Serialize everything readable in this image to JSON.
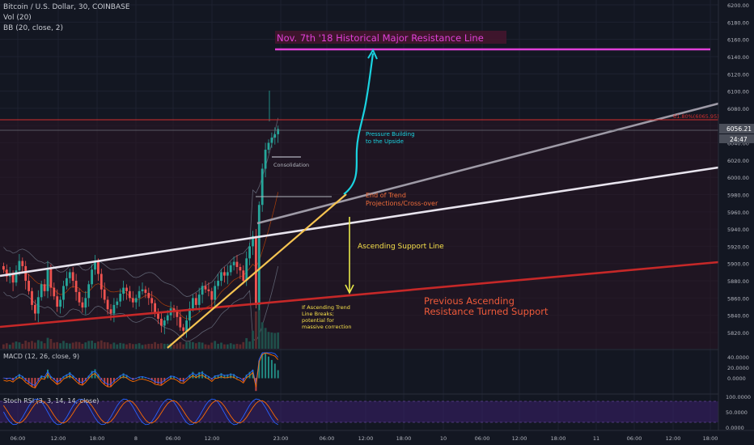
{
  "header": {
    "symbol": "Bitcoin / U.S. Dollar, 30, COINBASE",
    "vol": "Vol (20)",
    "bb": "BB (20, close, 2)",
    "macd": "MACD (12, 26, close, 9)",
    "stoch": "Stoch RSI (3, 3, 14, 14, close)"
  },
  "price_tags": {
    "last": "6056.21",
    "countdown": "24:47",
    "fib": "61.80%(6065.95)"
  },
  "annotations": {
    "resistance_title": "Nov. 7th '18 Historical Major Resistance Line",
    "pressure_1": "Pressure Building",
    "pressure_2": "to the Upside",
    "consolidation": "Consolidation",
    "end_trend_1": "End of Trend",
    "end_trend_2": "Projections/Cross-over",
    "asc_support": "Ascending Support Line",
    "prev_asc_1": "Previous Ascending",
    "prev_asc_2": "Resistance Turned Support",
    "breaks_1": "If Ascending Trend",
    "breaks_2": "Line Breaks;",
    "breaks_3": "potential for",
    "breaks_4": "massive correction"
  },
  "colors": {
    "background": "#131722",
    "grid": "#1e2230",
    "candle_up": "#26a69a",
    "candle_down": "#ef5350",
    "resistance_magenta": "#e040d8",
    "fib_line": "#d32f2f",
    "macd_line": "#2962ff",
    "signal_line": "#ff6d00",
    "stoch_k": "#2962ff",
    "stoch_d": "#ff6d00",
    "stoch_band": "#4a2a7a"
  },
  "chart_data": {
    "type": "candlestick",
    "y_axis_ticks": [
      6200,
      6180,
      6160,
      6140,
      6120,
      6100,
      6080,
      6060,
      6040,
      6020,
      6000,
      5980,
      5960,
      5940,
      5920,
      5900,
      5880,
      5860,
      5840,
      5820
    ],
    "ylim": [
      5810,
      6205
    ],
    "x_axis_ticks": [
      "06:00",
      "12:00",
      "18:00",
      "8",
      "06:00",
      "12:00",
      "23:00",
      "06:00",
      "12:00",
      "18:00",
      "10",
      "06:00",
      "12:00",
      "18:00",
      "11",
      "06:00",
      "12:00",
      "18:00"
    ],
    "macd_ticks": [
      "40.0000",
      "20.0000",
      "0.0000"
    ],
    "stoch_ticks": [
      "100.0000",
      "50.0000",
      "0.0000"
    ],
    "candles_close": [
      5893,
      5885,
      5888,
      5878,
      5892,
      5903,
      5897,
      5880,
      5868,
      5852,
      5842,
      5861,
      5876,
      5868,
      5895,
      5872,
      5862,
      5850,
      5858,
      5874,
      5883,
      5890,
      5880,
      5867,
      5855,
      5849,
      5860,
      5876,
      5893,
      5902,
      5888,
      5870,
      5858,
      5847,
      5842,
      5852,
      5856,
      5865,
      5872,
      5868,
      5860,
      5855,
      5860,
      5868,
      5870,
      5866,
      5860,
      5854,
      5842,
      5836,
      5828,
      5834,
      5840,
      5848,
      5845,
      5838,
      5826,
      5822,
      5834,
      5848,
      5860,
      5852,
      5864,
      5874,
      5870,
      5868,
      5858,
      5874,
      5880,
      5890,
      5886,
      5890,
      5898,
      5902,
      5896,
      5892,
      5880,
      5906,
      5920,
      5932,
      5852,
      5968,
      6010,
      6032,
      6040,
      6046,
      6050,
      6056
    ]
  }
}
